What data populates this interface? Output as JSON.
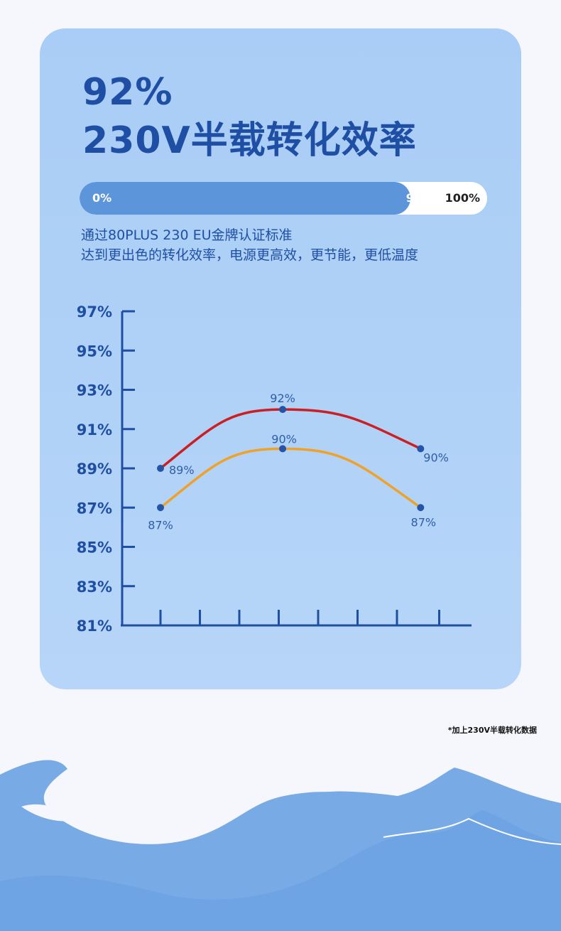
{
  "headline": {
    "value": "92%",
    "subtitle": "230V半载转化效率"
  },
  "progress": {
    "start_label": "0%",
    "value_label": "92%",
    "max_label": "100%",
    "value": 92,
    "max": 100
  },
  "description": {
    "line1": "通过80PLUS 230 EU金牌认证标准",
    "line2": "达到更出色的转化效率，电源更高效，更节能，更低温度"
  },
  "footnote": "*加上230V半载转化数据",
  "chart_data": {
    "type": "line",
    "title": "",
    "xlabel": "",
    "ylabel": "",
    "y_ticks": [
      "97%",
      "95%",
      "93%",
      "91%",
      "89%",
      "87%",
      "85%",
      "83%",
      "81%"
    ],
    "y_tick_values": [
      97,
      95,
      93,
      91,
      89,
      87,
      85,
      83,
      81
    ],
    "ylim": [
      81,
      97
    ],
    "grid": false,
    "legend": "none",
    "x_tick_count": 8,
    "series": [
      {
        "color": "#cc1f24",
        "x": [
          1,
          4.1,
          7.6
        ],
        "values": [
          89,
          92,
          90
        ],
        "labels": [
          "89%",
          "92%",
          "90%"
        ]
      },
      {
        "color": "#efa22a",
        "x": [
          1,
          4.1,
          7.6
        ],
        "values": [
          87,
          90,
          87
        ],
        "labels": [
          "87%",
          "90%",
          "87%"
        ]
      }
    ],
    "colors": {
      "axis": "#1f4fa5",
      "tick_label": "#1f4fa5",
      "point": "#2453a8",
      "point_label": "#2f5ea8"
    }
  }
}
